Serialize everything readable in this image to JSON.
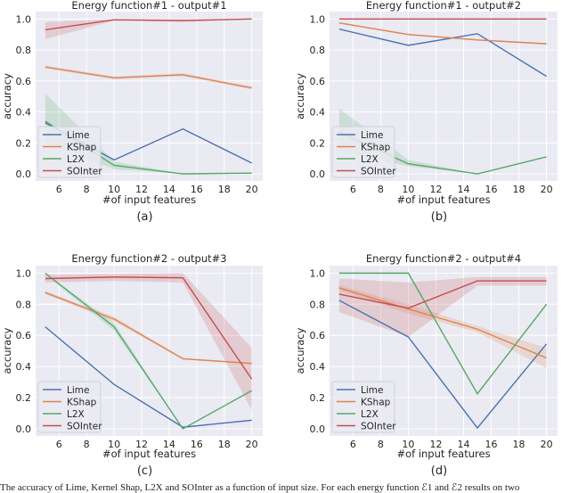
{
  "colors": {
    "background": "#eaeaf2",
    "grid": "#ffffff",
    "Lime": "#4c72b0",
    "KShap": "#dd8452",
    "L2X": "#55a868",
    "SOInter": "#c44e52"
  },
  "caption": "The accuracy of Lime, Kernel Shap, L2X and SOInter as a function of input size. For each energy function ℰ1 and ℰ2 results on two",
  "chart_data": [
    {
      "type": "line",
      "panel_label": "(a)",
      "title": "Energy function#1 - output#1",
      "xlabel": "#of input features",
      "ylabel": "accuracy",
      "x": [
        5,
        10,
        15,
        20
      ],
      "xticks": [
        6,
        8,
        10,
        12,
        14,
        16,
        18,
        20
      ],
      "yticks": [
        0.0,
        0.2,
        0.4,
        0.6,
        0.8,
        1.0
      ],
      "xlim": [
        4.3,
        20.8
      ],
      "ylim": [
        -0.046,
        1.048
      ],
      "grid": true,
      "legend": "lower-left",
      "series": [
        {
          "name": "Lime",
          "values": [
            0.33,
            0.09,
            0.29,
            0.07
          ]
        },
        {
          "name": "KShap",
          "values": [
            0.69,
            0.62,
            0.64,
            0.555
          ],
          "lower": [
            0.68,
            0.61,
            0.63,
            0.545
          ],
          "upper": [
            0.7,
            0.63,
            0.65,
            0.565
          ]
        },
        {
          "name": "L2X",
          "values": [
            0.34,
            0.055,
            0.0,
            0.005
          ],
          "lower": [
            0.2,
            0.03,
            0.0,
            0.0
          ],
          "upper": [
            0.52,
            0.08,
            0.0,
            0.01
          ]
        },
        {
          "name": "SOInter",
          "values": [
            0.93,
            0.995,
            0.99,
            1.0
          ],
          "lower": [
            0.87,
            0.99,
            0.98,
            1.0
          ],
          "upper": [
            0.98,
            1.0,
            1.0,
            1.0
          ]
        }
      ]
    },
    {
      "type": "line",
      "panel_label": "(b)",
      "title": "Energy function#1 - output#2",
      "xlabel": "#of input features",
      "ylabel": "accuracy",
      "x": [
        5,
        10,
        15,
        20
      ],
      "xticks": [
        6,
        8,
        10,
        12,
        14,
        16,
        18,
        20
      ],
      "yticks": [
        0.0,
        0.2,
        0.4,
        0.6,
        0.8,
        1.0
      ],
      "xlim": [
        4.3,
        20.8
      ],
      "ylim": [
        -0.046,
        1.048
      ],
      "grid": true,
      "legend": "lower-left",
      "series": [
        {
          "name": "Lime",
          "values": [
            0.935,
            0.83,
            0.905,
            0.63
          ]
        },
        {
          "name": "KShap",
          "values": [
            0.975,
            0.9,
            0.865,
            0.84
          ],
          "lower": [
            0.97,
            0.895,
            0.86,
            0.835
          ],
          "upper": [
            0.98,
            0.905,
            0.87,
            0.845
          ]
        },
        {
          "name": "L2X",
          "values": [
            0.27,
            0.065,
            0.0,
            0.11
          ],
          "lower": [
            0.15,
            0.05,
            0.0,
            0.11
          ],
          "upper": [
            0.42,
            0.09,
            0.0,
            0.11
          ]
        },
        {
          "name": "SOInter",
          "values": [
            1.0,
            1.0,
            1.0,
            1.0
          ]
        }
      ]
    },
    {
      "type": "line",
      "panel_label": "(c)",
      "title": "Energy function#2 - output#3",
      "xlabel": "#of input features",
      "ylabel": "accuracy",
      "x": [
        5,
        10,
        15,
        20
      ],
      "xticks": [
        6,
        8,
        10,
        12,
        14,
        16,
        18,
        20
      ],
      "yticks": [
        0.0,
        0.2,
        0.4,
        0.6,
        0.8,
        1.0
      ],
      "xlim": [
        4.3,
        20.8
      ],
      "ylim": [
        -0.046,
        1.048
      ],
      "grid": true,
      "legend": "lower-left",
      "series": [
        {
          "name": "Lime",
          "values": [
            0.655,
            0.285,
            0.01,
            0.055
          ]
        },
        {
          "name": "KShap",
          "values": [
            0.875,
            0.705,
            0.45,
            0.42
          ],
          "lower": [
            0.865,
            0.69,
            0.445,
            0.415
          ],
          "upper": [
            0.885,
            0.72,
            0.455,
            0.425
          ]
        },
        {
          "name": "L2X",
          "values": [
            1.0,
            0.655,
            0.0,
            0.245
          ],
          "lower": [
            0.99,
            0.63,
            0.0,
            0.24
          ],
          "upper": [
            1.0,
            0.68,
            0.0,
            0.25
          ]
        },
        {
          "name": "SOInter",
          "values": [
            0.965,
            0.975,
            0.97,
            0.32
          ],
          "lower": [
            0.94,
            0.95,
            0.94,
            0.12
          ],
          "upper": [
            0.99,
            0.995,
            1.0,
            0.52
          ]
        }
      ]
    },
    {
      "type": "line",
      "panel_label": "(d)",
      "title": "Energy function#2 - output#4",
      "xlabel": "#of input features",
      "ylabel": "accuracy",
      "x": [
        5,
        10,
        15,
        20
      ],
      "xticks": [
        6,
        8,
        10,
        12,
        14,
        16,
        18,
        20
      ],
      "yticks": [
        0.0,
        0.2,
        0.4,
        0.6,
        0.8,
        1.0
      ],
      "xlim": [
        4.3,
        20.8
      ],
      "ylim": [
        -0.046,
        1.048
      ],
      "grid": true,
      "legend": "lower-left",
      "series": [
        {
          "name": "Lime",
          "values": [
            0.825,
            0.59,
            0.005,
            0.545
          ]
        },
        {
          "name": "KShap",
          "values": [
            0.905,
            0.77,
            0.64,
            0.455
          ],
          "lower": [
            0.89,
            0.74,
            0.62,
            0.39
          ],
          "upper": [
            0.92,
            0.8,
            0.66,
            0.52
          ]
        },
        {
          "name": "L2X",
          "values": [
            1.0,
            1.0,
            0.225,
            0.8
          ]
        },
        {
          "name": "SOInter",
          "values": [
            0.865,
            0.775,
            0.95,
            0.95
          ],
          "lower": [
            0.75,
            0.59,
            0.92,
            0.92
          ],
          "upper": [
            0.965,
            0.94,
            0.975,
            0.975
          ]
        }
      ]
    }
  ]
}
